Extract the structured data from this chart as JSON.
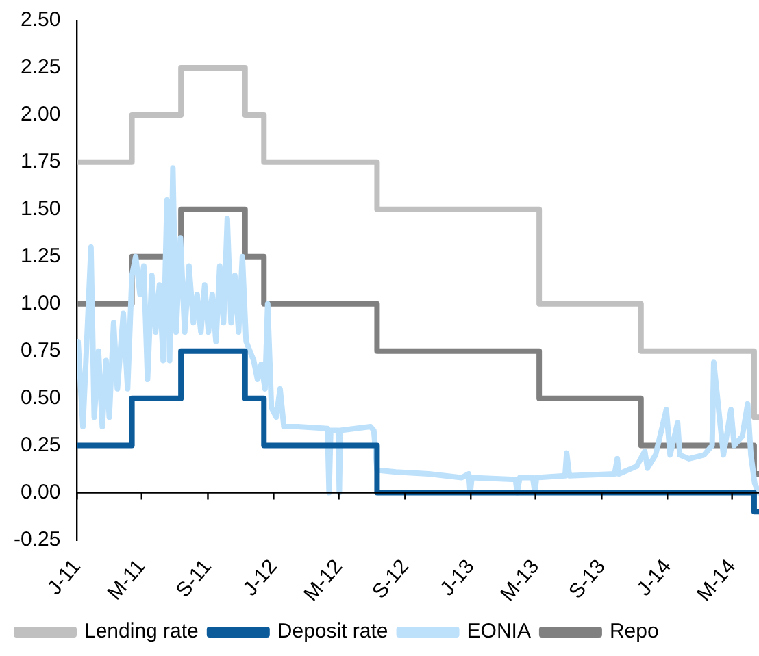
{
  "chart_data": {
    "type": "step",
    "marker": "none",
    "legend": "bottom",
    "xlim": [
      "2011-01-01",
      "2014-06-20"
    ],
    "xticks": [
      {
        "value": "2011-01-01",
        "label": "J-11"
      },
      {
        "value": "2011-05-01",
        "label": "M-11"
      },
      {
        "value": "2011-09-01",
        "label": "S-11"
      },
      {
        "value": "2012-01-01",
        "label": "J-12"
      },
      {
        "value": "2012-05-01",
        "label": "M-12"
      },
      {
        "value": "2012-09-01",
        "label": "S-12"
      },
      {
        "value": "2013-01-01",
        "label": "J-13"
      },
      {
        "value": "2013-05-01",
        "label": "M-13"
      },
      {
        "value": "2013-09-01",
        "label": "S-13"
      },
      {
        "value": "2014-01-01",
        "label": "J-14"
      },
      {
        "value": "2014-05-01",
        "label": "M-14"
      }
    ],
    "ylim": [
      -0.25,
      2.5
    ],
    "yticks": [
      {
        "value": -0.25,
        "label": "-0.25"
      },
      {
        "value": 0,
        "label": "0.00"
      },
      {
        "value": 0.25,
        "label": "0.25"
      },
      {
        "value": 0.5,
        "label": "0.50"
      },
      {
        "value": 0.75,
        "label": "0.75"
      },
      {
        "value": 1,
        "label": "1.00"
      },
      {
        "value": 1.25,
        "label": "1.25"
      },
      {
        "value": 1.5,
        "label": "1.50"
      },
      {
        "value": 1.75,
        "label": "1.75"
      },
      {
        "value": 2,
        "label": "2.00"
      },
      {
        "value": 2.25,
        "label": "2.25"
      },
      {
        "value": 2.5,
        "label": "2.50"
      }
    ],
    "series": [
      {
        "name": "Lending rate",
        "type": "step",
        "color": "#c0c0c0",
        "x": [
          "2011-01-01",
          "2011-04-13",
          "2011-07-13",
          "2011-11-09",
          "2011-12-14",
          "2012-07-11",
          "2013-05-08",
          "2013-11-13",
          "2014-06-11",
          "2014-06-20"
        ],
        "values": [
          1.75,
          2.0,
          2.25,
          2.0,
          1.75,
          1.5,
          1.0,
          0.75,
          0.4,
          0.4
        ]
      },
      {
        "name": "Deposit rate",
        "type": "step",
        "color": "#0b5a9a",
        "x": [
          "2011-01-01",
          "2011-04-13",
          "2011-07-13",
          "2011-11-09",
          "2011-12-14",
          "2012-07-11",
          "2014-06-11",
          "2014-06-20"
        ],
        "values": [
          0.25,
          0.5,
          0.75,
          0.5,
          0.25,
          0.0,
          -0.1,
          -0.1
        ]
      },
      {
        "name": "EONIA",
        "type": "line",
        "color": "#bde0fb",
        "x": [
          "2011-01-03",
          "2011-01-12",
          "2011-01-20",
          "2011-01-27",
          "2011-02-02",
          "2011-02-10",
          "2011-02-17",
          "2011-02-24",
          "2011-03-02",
          "2011-03-10",
          "2011-03-17",
          "2011-03-28",
          "2011-04-05",
          "2011-04-13",
          "2011-04-20",
          "2011-04-28",
          "2011-05-05",
          "2011-05-12",
          "2011-05-20",
          "2011-05-27",
          "2011-06-03",
          "2011-06-10",
          "2011-06-17",
          "2011-06-22",
          "2011-06-28",
          "2011-07-04",
          "2011-07-12",
          "2011-07-20",
          "2011-07-28",
          "2011-08-05",
          "2011-08-12",
          "2011-08-19",
          "2011-08-26",
          "2011-09-02",
          "2011-09-09",
          "2011-09-16",
          "2011-09-23",
          "2011-09-30",
          "2011-10-07",
          "2011-10-14",
          "2011-10-21",
          "2011-10-28",
          "2011-11-04",
          "2011-11-11",
          "2011-11-18",
          "2011-11-25",
          "2011-12-02",
          "2011-12-09",
          "2011-12-16",
          "2011-12-21",
          "2011-12-28",
          "2012-01-06",
          "2012-01-13",
          "2012-01-20",
          "2012-02-15",
          "2012-04-10",
          "2012-04-13",
          "2012-04-16",
          "2012-04-30",
          "2012-05-02",
          "2012-05-04",
          "2012-06-29",
          "2012-07-05",
          "2012-07-11",
          "2012-08-15",
          "2012-10-15",
          "2012-12-15",
          "2012-12-28",
          "2012-12-31",
          "2013-01-03",
          "2013-03-25",
          "2013-03-28",
          "2013-04-02",
          "2013-04-26",
          "2013-04-30",
          "2013-05-03",
          "2013-06-25",
          "2013-06-28",
          "2013-07-03",
          "2013-09-25",
          "2013-09-30",
          "2013-10-03",
          "2013-11-05",
          "2013-11-20",
          "2013-11-25",
          "2013-12-10",
          "2013-12-30",
          "2014-01-06",
          "2014-01-20",
          "2014-01-24",
          "2014-02-10",
          "2014-03-10",
          "2014-03-25",
          "2014-03-28",
          "2014-04-15",
          "2014-04-29",
          "2014-05-05",
          "2014-05-20",
          "2014-05-30",
          "2014-06-05",
          "2014-06-12",
          "2014-06-19"
        ],
        "values": [
          0.8,
          0.35,
          0.85,
          1.3,
          0.4,
          0.75,
          0.35,
          0.7,
          0.4,
          0.9,
          0.55,
          0.95,
          0.55,
          1.15,
          1.25,
          1.05,
          1.2,
          0.6,
          1.15,
          0.85,
          1.1,
          0.7,
          1.55,
          0.7,
          1.72,
          0.85,
          1.35,
          0.85,
          1.2,
          0.9,
          1.05,
          0.85,
          1.1,
          0.85,
          1.05,
          0.8,
          1.2,
          0.9,
          1.45,
          0.9,
          1.15,
          0.85,
          1.25,
          0.8,
          0.75,
          0.7,
          0.6,
          0.68,
          0.55,
          1.0,
          0.45,
          0.4,
          0.55,
          0.35,
          0.35,
          0.34,
          0.0,
          0.33,
          0.33,
          0.0,
          0.33,
          0.35,
          0.33,
          0.12,
          0.11,
          0.1,
          0.08,
          0.1,
          0.0,
          0.08,
          0.07,
          0.0,
          0.08,
          0.08,
          0.0,
          0.08,
          0.09,
          0.21,
          0.09,
          0.1,
          0.18,
          0.1,
          0.14,
          0.22,
          0.13,
          0.2,
          0.44,
          0.2,
          0.37,
          0.2,
          0.18,
          0.2,
          0.25,
          0.69,
          0.2,
          0.44,
          0.25,
          0.3,
          0.47,
          0.2,
          0.05,
          0.0
        ]
      },
      {
        "name": "Repo",
        "type": "step",
        "color": "#808080",
        "x": [
          "2011-01-01",
          "2011-04-13",
          "2011-07-13",
          "2011-11-09",
          "2011-12-14",
          "2012-07-11",
          "2013-05-08",
          "2013-11-13",
          "2014-06-11",
          "2014-06-20"
        ],
        "values": [
          1.0,
          1.25,
          1.5,
          1.25,
          1.0,
          0.75,
          0.5,
          0.25,
          0.1,
          0.1
        ]
      }
    ]
  }
}
